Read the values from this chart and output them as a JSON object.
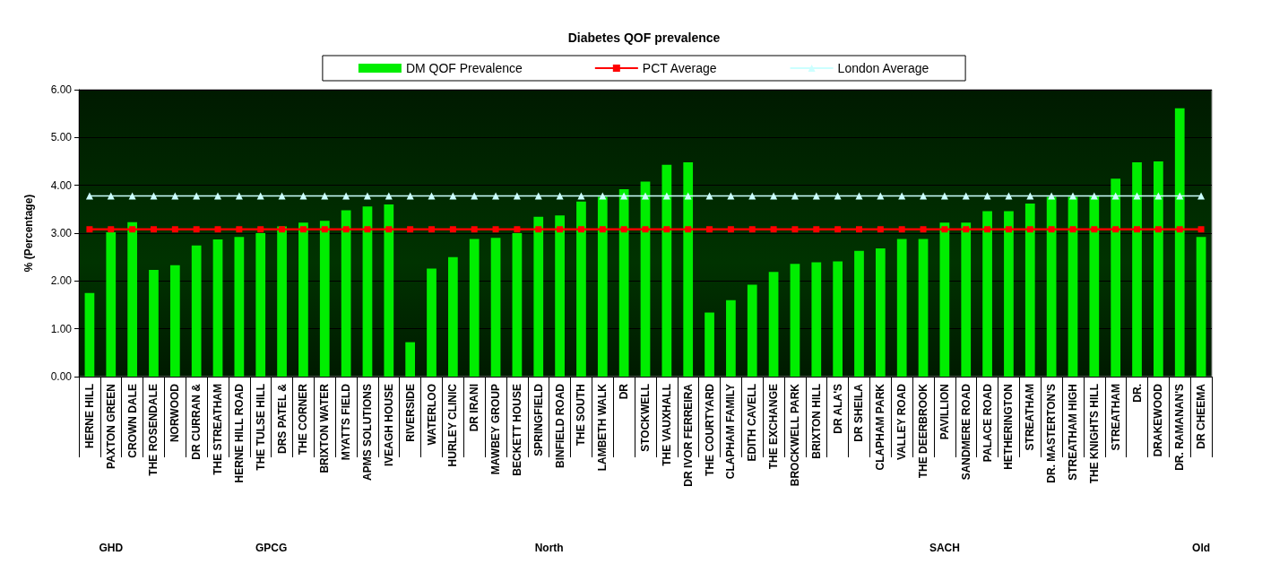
{
  "chart_data": {
    "type": "bar",
    "title": "Diabetes QOF prevalence",
    "ylabel": "% (Percentage)",
    "categories": [
      "HERNE HILL",
      "PAXTON GREEN",
      "CROWN DALE",
      "THE ROSENDALE",
      "NORWOOD",
      "DR CURRAN &",
      "THE STREATHAM",
      "HERNE HILL ROAD",
      "THE TULSE HILL",
      "DRS PATEL &",
      "THE CORNER",
      "BRIXTON WATER",
      "MYATTS FIELD",
      "APMS SOLUTIONS",
      "IVEAGH HOUSE",
      "RIVERSIDE",
      "WATERLOO",
      "HURLEY CLINIC",
      "DR IRANI",
      "MAWBEY GROUP",
      "BECKETT HOUSE",
      "SPRINGFIELD",
      "BINFIELD ROAD",
      "THE SOUTH",
      "LAMBETH WALK",
      "DR",
      "STOCKWELL",
      "THE VAUXHALL",
      "DR IVOR FERREIRA",
      "THE COURTYARD",
      "CLAPHAM FAMILY",
      "EDITH CAVELL",
      "THE EXCHANGE",
      "BROCKWELL PARK",
      "BRIXTON HILL",
      "DR ALA'S",
      "DR SHEILA",
      "CLAPHAM PARK",
      "VALLEY ROAD",
      "THE DEERBROOK",
      "PAVILLION",
      "SANDMERE ROAD",
      "PALACE ROAD",
      "HETHERINGTON",
      "STREATHAM",
      "DR. MASTERTON'S",
      "STREATHAM HIGH",
      "THE KNIGHTS HILL",
      "STREATHAM",
      "DR.",
      "DRAKEWOOD",
      "DR. RAMANAN'S",
      "DR CHEEMA"
    ],
    "series": [
      {
        "name": "DM QOF Prevalence",
        "color": "#00ee00",
        "values": [
          1.75,
          3.02,
          3.23,
          2.23,
          2.33,
          2.74,
          2.87,
          2.92,
          3.0,
          3.14,
          3.22,
          3.26,
          3.48,
          3.56,
          3.6,
          0.72,
          2.26,
          2.5,
          2.88,
          2.9,
          3.0,
          3.34,
          3.37,
          3.66,
          3.76,
          3.92,
          4.08,
          4.43,
          4.48,
          1.34,
          1.6,
          1.92,
          2.19,
          2.36,
          2.39,
          2.41,
          2.63,
          2.68,
          2.88,
          2.88,
          3.22,
          3.22,
          3.46,
          3.46,
          3.62,
          3.76,
          3.76,
          3.78,
          4.14,
          4.48,
          4.5,
          5.61,
          2.92
        ]
      },
      {
        "name": "PCT Average",
        "type": "line",
        "color": "#ff0000",
        "marker": "square",
        "values": [
          3.08,
          3.08,
          3.08,
          3.08,
          3.08,
          3.08,
          3.08,
          3.08,
          3.08,
          3.08,
          3.08,
          3.08,
          3.08,
          3.08,
          3.08,
          3.08,
          3.08,
          3.08,
          3.08,
          3.08,
          3.08,
          3.08,
          3.08,
          3.08,
          3.08,
          3.08,
          3.08,
          3.08,
          3.08,
          3.08,
          3.08,
          3.08,
          3.08,
          3.08,
          3.08,
          3.08,
          3.08,
          3.08,
          3.08,
          3.08,
          3.08,
          3.08,
          3.08,
          3.08,
          3.08,
          3.08,
          3.08,
          3.08,
          3.08,
          3.08,
          3.08,
          3.08,
          3.08
        ]
      },
      {
        "name": "London Average",
        "type": "line",
        "color": "#ccffff",
        "marker": "triangle",
        "values": [
          3.78,
          3.78,
          3.78,
          3.78,
          3.78,
          3.78,
          3.78,
          3.78,
          3.78,
          3.78,
          3.78,
          3.78,
          3.78,
          3.78,
          3.78,
          3.78,
          3.78,
          3.78,
          3.78,
          3.78,
          3.78,
          3.78,
          3.78,
          3.78,
          3.78,
          3.78,
          3.78,
          3.78,
          3.78,
          3.78,
          3.78,
          3.78,
          3.78,
          3.78,
          3.78,
          3.78,
          3.78,
          3.78,
          3.78,
          3.78,
          3.78,
          3.78,
          3.78,
          3.78,
          3.78,
          3.78,
          3.78,
          3.78,
          3.78,
          3.78,
          3.78,
          3.78,
          3.78
        ]
      }
    ],
    "annotations": [
      "GHD",
      "GPCG",
      "North",
      "SACH",
      "Old"
    ],
    "ylim": [
      0,
      6
    ],
    "yticks": [
      {
        "value": 0,
        "label": "0.00"
      },
      {
        "value": 1,
        "label": "1.00"
      },
      {
        "value": 2,
        "label": "2.00"
      },
      {
        "value": 3,
        "label": "3.00"
      },
      {
        "value": 4,
        "label": "4.00"
      },
      {
        "value": 5,
        "label": "5.00"
      },
      {
        "value": 6,
        "label": "6.00"
      }
    ],
    "grid": "y",
    "legend": "top"
  }
}
